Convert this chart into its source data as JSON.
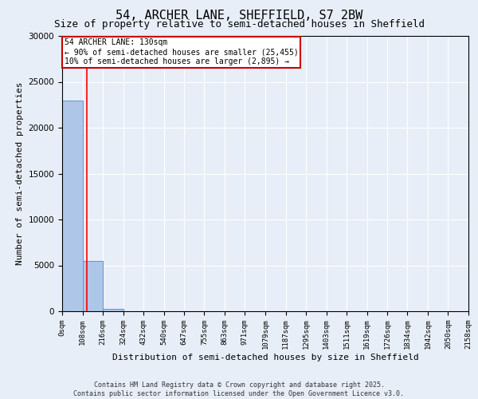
{
  "title": "54, ARCHER LANE, SHEFFIELD, S7 2BW",
  "subtitle": "Size of property relative to semi-detached houses in Sheffield",
  "xlabel": "Distribution of semi-detached houses by size in Sheffield",
  "ylabel": "Number of semi-detached properties",
  "bar_values": [
    23000,
    5500,
    300,
    0,
    0,
    0,
    0,
    0,
    0,
    0,
    0,
    0,
    0,
    0,
    0,
    0,
    0,
    0,
    0,
    0
  ],
  "bin_edges": [
    0,
    108,
    216,
    324,
    432,
    540,
    647,
    755,
    863,
    971,
    1079,
    1187,
    1295,
    1403,
    1511,
    1619,
    1726,
    1834,
    1942,
    2050,
    2158
  ],
  "x_tick_labels": [
    "0sqm",
    "108sqm",
    "216sqm",
    "324sqm",
    "432sqm",
    "540sqm",
    "647sqm",
    "755sqm",
    "863sqm",
    "971sqm",
    "1079sqm",
    "1187sqm",
    "1295sqm",
    "1403sqm",
    "1511sqm",
    "1619sqm",
    "1726sqm",
    "1834sqm",
    "1942sqm",
    "2050sqm",
    "2158sqm"
  ],
  "ylim": [
    0,
    30000
  ],
  "bar_color": "#aec6e8",
  "bar_edge_color": "#5a9bd5",
  "red_line_x": 130,
  "annotation_text_line1": "54 ARCHER LANE: 130sqm",
  "annotation_text_line2": "← 90% of semi-detached houses are smaller (25,455)",
  "annotation_text_line3": "10% of semi-detached houses are larger (2,895) →",
  "annotation_box_facecolor": "#ffffff",
  "annotation_box_edgecolor": "#cc0000",
  "background_color": "#e8eef7",
  "grid_color": "#ffffff",
  "footnote_line1": "Contains HM Land Registry data © Crown copyright and database right 2025.",
  "footnote_line2": "Contains public sector information licensed under the Open Government Licence v3.0.",
  "title_fontsize": 11,
  "subtitle_fontsize": 9,
  "tick_fontsize": 6.5,
  "ylabel_fontsize": 8,
  "xlabel_fontsize": 8,
  "annotation_fontsize": 7,
  "footnote_fontsize": 6
}
